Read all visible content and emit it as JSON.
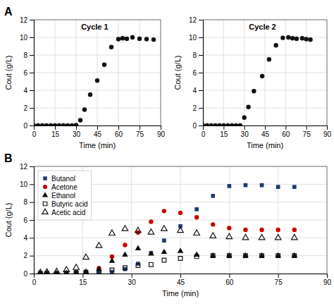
{
  "chart_data": [
    {
      "type": "scatter",
      "title": "Cycle 1",
      "annotations": [
        "A"
      ],
      "xlabel": "Time (min)",
      "ylabel": "Cout (g/L)",
      "x": [
        0,
        3,
        6,
        9,
        12,
        15,
        18,
        21,
        24,
        27,
        30,
        33,
        36,
        40,
        45,
        50,
        55,
        60,
        63,
        66,
        70,
        75,
        80,
        85
      ],
      "values": [
        0,
        0,
        0,
        0,
        0,
        0,
        0,
        0,
        0,
        0,
        0.05,
        0.6,
        1.8,
        3.5,
        5.1,
        6.9,
        8.9,
        9.8,
        9.9,
        9.85,
        10.0,
        9.85,
        9.8,
        9.75
      ],
      "color": "#111111",
      "marker": "circle",
      "xlim": [
        0,
        90
      ],
      "xticks": [
        0,
        15,
        30,
        45,
        60,
        75,
        90
      ],
      "ylim": [
        0,
        12
      ],
      "yticks": [
        0,
        2,
        4,
        6,
        8,
        10,
        12
      ],
      "grid": true
    },
    {
      "type": "scatter",
      "title": "Cycle 2",
      "xlabel": "Time (min)",
      "ylabel": "Cout (g/L)",
      "x": [
        0,
        3,
        6,
        9,
        12,
        15,
        18,
        21,
        24,
        27,
        30,
        33,
        37,
        43,
        48,
        53,
        58,
        62,
        65,
        68,
        72,
        75,
        78
      ],
      "values": [
        0,
        0,
        0,
        0,
        0,
        0,
        0,
        0,
        0,
        0,
        0.9,
        2.1,
        3.9,
        5.6,
        7.5,
        9.1,
        9.95,
        10.0,
        9.9,
        9.85,
        9.9,
        9.8,
        9.75
      ],
      "color": "#111111",
      "marker": "circle",
      "xlim": [
        0,
        90
      ],
      "xticks": [
        0,
        15,
        30,
        45,
        60,
        75,
        90
      ],
      "ylim": [
        0,
        12
      ],
      "yticks": [
        0,
        2,
        4,
        6,
        8,
        10,
        12
      ],
      "grid": true
    },
    {
      "type": "scatter",
      "annotations": [
        "B"
      ],
      "xlabel": "Time (min)",
      "ylabel": "Cout (g/L)",
      "series": [
        {
          "name": "Butanol",
          "color": "#1a3a6e",
          "marker": "square",
          "x": [
            2,
            4,
            7,
            10,
            13,
            16,
            20,
            24,
            28,
            32,
            36,
            40,
            45,
            50,
            55,
            60,
            65,
            70,
            75,
            80
          ],
          "values": [
            0,
            0,
            0,
            0,
            0.05,
            0.1,
            0.1,
            0.2,
            0.5,
            1.1,
            2.3,
            3.7,
            5.3,
            7.2,
            8.7,
            9.8,
            9.9,
            9.9,
            9.7,
            9.7
          ]
        },
        {
          "name": "Acetone",
          "color": "#cc0000",
          "marker": "circle",
          "x": [
            2,
            4,
            7,
            10,
            13,
            16,
            20,
            24,
            28,
            32,
            36,
            40,
            45,
            50,
            55,
            60,
            65,
            70,
            75,
            80
          ],
          "values": [
            0,
            0,
            0,
            0.05,
            0.1,
            0.2,
            0.6,
            1.9,
            3.2,
            4.6,
            5.8,
            7.0,
            6.8,
            6.3,
            5.5,
            5.1,
            4.9,
            4.9,
            4.9,
            4.9
          ]
        },
        {
          "name": "Ethanol",
          "color": "#111111",
          "marker": "triangle",
          "x": [
            2,
            4,
            7,
            10,
            13,
            16,
            20,
            24,
            28,
            32,
            36,
            40,
            45,
            50,
            55,
            60,
            65,
            70,
            75,
            80
          ],
          "values": [
            0,
            0,
            0,
            0.05,
            0.1,
            0.2,
            0.5,
            1.4,
            2.1,
            2.8,
            2.2,
            2.4,
            2.5,
            2.1,
            2.0,
            2.0,
            2.0,
            2.0,
            2.0,
            2.0
          ]
        },
        {
          "name": "Butyric acid",
          "color": "#111111",
          "marker": "square-open",
          "x": [
            2,
            4,
            7,
            10,
            13,
            16,
            20,
            24,
            28,
            32,
            36,
            40,
            45,
            50,
            55,
            60,
            65,
            70,
            75,
            80
          ],
          "values": [
            0,
            0,
            0,
            0.05,
            0.1,
            0.15,
            0.2,
            0.4,
            0.65,
            0.9,
            1.0,
            1.5,
            1.7,
            1.9,
            2.0,
            2.0,
            2.0,
            2.0,
            2.0,
            2.0
          ]
        },
        {
          "name": "Acetic acid",
          "color": "#111111",
          "marker": "triangle-open",
          "x": [
            2,
            4,
            7,
            10,
            13,
            16,
            20,
            24,
            28,
            32,
            36,
            40,
            45,
            50,
            55,
            60,
            65,
            70,
            75,
            80
          ],
          "values": [
            0.1,
            0.15,
            0.2,
            0.4,
            0.65,
            1.8,
            3.1,
            4.5,
            5.0,
            4.8,
            4.6,
            5.0,
            4.8,
            4.5,
            4.2,
            4.1,
            4.0,
            4.0,
            4.0,
            4.0
          ]
        }
      ],
      "xlim": [
        0,
        90
      ],
      "xticks": [
        0,
        15,
        30,
        45,
        60,
        75,
        90
      ],
      "ylim": [
        0,
        12
      ],
      "yticks": [
        0,
        2,
        4,
        6,
        8,
        10,
        12
      ],
      "grid": true,
      "legend": "upper left"
    }
  ]
}
